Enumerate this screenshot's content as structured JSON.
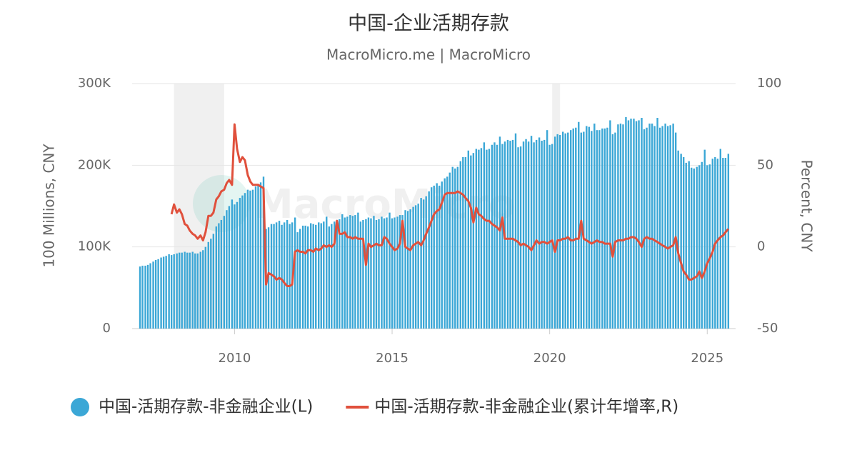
{
  "chart_data": {
    "type": "bar",
    "title": "中国-企业活期存款",
    "subtitle": "MacroMicro.me | MacroMicro",
    "watermark": "MacroMicro",
    "y_label": "100 Millions, CNY",
    "y2_label": "Percent, CNY",
    "xlim": [
      2006.75,
      2025.9
    ],
    "xticks": [
      2010,
      2015,
      2020,
      2025
    ],
    "ylim": [
      0,
      300000
    ],
    "yticks": [
      0,
      {
        "value": 100000,
        "label": "100K"
      },
      {
        "value": 200000,
        "label": "200K"
      },
      {
        "value": 300000,
        "label": "300K"
      }
    ],
    "y2lim": [
      -50,
      100
    ],
    "y2ticks": [
      -50,
      0,
      50,
      100
    ],
    "grid": true,
    "legend": "bottom",
    "shaded": [
      [
        2008.08,
        2009.67
      ],
      [
        2020.08,
        2020.33
      ]
    ],
    "x": [
      2007.0,
      2007.08,
      2007.17,
      2007.25,
      2007.33,
      2007.42,
      2007.5,
      2007.58,
      2007.67,
      2007.75,
      2007.83,
      2007.92,
      2008.0,
      2008.08,
      2008.17,
      2008.25,
      2008.33,
      2008.42,
      2008.5,
      2008.58,
      2008.67,
      2008.75,
      2008.83,
      2008.92,
      2009.0,
      2009.08,
      2009.17,
      2009.25,
      2009.33,
      2009.42,
      2009.5,
      2009.58,
      2009.67,
      2009.75,
      2009.83,
      2009.92,
      2010.0,
      2010.08,
      2010.17,
      2010.25,
      2010.33,
      2010.42,
      2010.5,
      2010.58,
      2010.67,
      2010.75,
      2010.83,
      2010.92,
      2011.0,
      2011.08,
      2011.17,
      2011.25,
      2011.33,
      2011.42,
      2011.5,
      2011.58,
      2011.67,
      2011.75,
      2011.83,
      2011.92,
      2012.0,
      2012.08,
      2012.17,
      2012.25,
      2012.33,
      2012.42,
      2012.5,
      2012.58,
      2012.67,
      2012.75,
      2012.83,
      2012.92,
      2013.0,
      2013.08,
      2013.17,
      2013.25,
      2013.33,
      2013.42,
      2013.5,
      2013.58,
      2013.67,
      2013.75,
      2013.83,
      2013.92,
      2014.0,
      2014.08,
      2014.17,
      2014.25,
      2014.33,
      2014.42,
      2014.5,
      2014.58,
      2014.67,
      2014.75,
      2014.83,
      2014.92,
      2015.0,
      2015.08,
      2015.17,
      2015.25,
      2015.33,
      2015.42,
      2015.5,
      2015.58,
      2015.67,
      2015.75,
      2015.83,
      2015.92,
      2016.0,
      2016.08,
      2016.17,
      2016.25,
      2016.33,
      2016.42,
      2016.5,
      2016.58,
      2016.67,
      2016.75,
      2016.83,
      2016.92,
      2017.0,
      2017.08,
      2017.17,
      2017.25,
      2017.33,
      2017.42,
      2017.5,
      2017.58,
      2017.67,
      2017.75,
      2017.83,
      2017.92,
      2018.0,
      2018.08,
      2018.17,
      2018.25,
      2018.33,
      2018.42,
      2018.5,
      2018.58,
      2018.67,
      2018.75,
      2018.83,
      2018.92,
      2019.0,
      2019.08,
      2019.17,
      2019.25,
      2019.33,
      2019.42,
      2019.5,
      2019.58,
      2019.67,
      2019.75,
      2019.83,
      2019.92,
      2020.0,
      2020.08,
      2020.17,
      2020.25,
      2020.33,
      2020.42,
      2020.5,
      2020.58,
      2020.67,
      2020.75,
      2020.83,
      2020.92,
      2021.0,
      2021.08,
      2021.17,
      2021.25,
      2021.33,
      2021.42,
      2021.5,
      2021.58,
      2021.67,
      2021.75,
      2021.83,
      2021.92,
      2022.0,
      2022.08,
      2022.17,
      2022.25,
      2022.33,
      2022.42,
      2022.5,
      2022.58,
      2022.67,
      2022.75,
      2022.83,
      2022.92,
      2023.0,
      2023.08,
      2023.17,
      2023.25,
      2023.33,
      2023.42,
      2023.5,
      2023.58,
      2023.67,
      2023.75,
      2023.83,
      2023.92,
      2024.0,
      2024.08,
      2024.17,
      2024.25,
      2024.33,
      2024.42,
      2024.5,
      2024.58,
      2024.67,
      2024.75,
      2024.83,
      2024.92,
      2025.0,
      2025.08,
      2025.17,
      2025.25,
      2025.33,
      2025.42,
      2025.5,
      2025.58,
      2025.67
    ],
    "series": [
      {
        "name": "中国-活期存款-非金融企业(L)",
        "type": "bar",
        "axis": "y",
        "color": "#3ba7d6",
        "values": [
          76000,
          77000,
          77000,
          78000,
          80000,
          82000,
          84000,
          85000,
          87000,
          88000,
          89000,
          91000,
          90000,
          91000,
          92000,
          93000,
          93000,
          94000,
          93000,
          93000,
          94000,
          92000,
          92000,
          94000,
          96000,
          100000,
          106000,
          110000,
          116000,
          125000,
          129000,
          133000,
          138000,
          145000,
          150000,
          158000,
          152000,
          155000,
          160000,
          163000,
          166000,
          170000,
          169000,
          170000,
          174000,
          176000,
          179000,
          186000,
          122000,
          124000,
          128000,
          128000,
          130000,
          132000,
          127000,
          130000,
          133000,
          128000,
          130000,
          136000,
          118000,
          122000,
          126000,
          126000,
          125000,
          129000,
          128000,
          127000,
          130000,
          129000,
          131000,
          137000,
          125000,
          128000,
          131000,
          133000,
          134000,
          140000,
          136000,
          137000,
          139000,
          138000,
          139000,
          142000,
          131000,
          133000,
          134000,
          136000,
          135000,
          138000,
          133000,
          134000,
          137000,
          135000,
          136000,
          142000,
          135000,
          136000,
          137000,
          139000,
          139000,
          145000,
          144000,
          146000,
          149000,
          151000,
          153000,
          160000,
          158000,
          162000,
          168000,
          173000,
          175000,
          178000,
          175000,
          180000,
          184000,
          186000,
          191000,
          198000,
          196000,
          198000,
          205000,
          210000,
          210000,
          218000,
          212000,
          215000,
          220000,
          219000,
          221000,
          228000,
          219000,
          220000,
          225000,
          228000,
          225000,
          235000,
          226000,
          229000,
          231000,
          230000,
          231000,
          239000,
          222000,
          223000,
          229000,
          232000,
          229000,
          236000,
          228000,
          231000,
          234000,
          230000,
          231000,
          243000,
          225000,
          226000,
          235000,
          238000,
          237000,
          241000,
          239000,
          240000,
          243000,
          245000,
          246000,
          253000,
          240000,
          241000,
          248000,
          247000,
          242000,
          251000,
          243000,
          243000,
          245000,
          245000,
          246000,
          255000,
          238000,
          240000,
          250000,
          251000,
          250000,
          259000,
          255000,
          257000,
          257000,
          254000,
          255000,
          258000,
          244000,
          246000,
          251000,
          251000,
          248000,
          258000,
          246000,
          248000,
          251000,
          248000,
          249000,
          251000,
          240000,
          218000,
          214000,
          210000,
          203000,
          205000,
          197000,
          196000,
          198000,
          200000,
          204000,
          219000,
          200000,
          201000,
          208000,
          210000,
          208000,
          220000,
          209000,
          209000,
          214000
        ]
      },
      {
        "name": "中国-活期存款-非金融企业(累计年增率,R)",
        "type": "line",
        "axis": "y2",
        "color": "#e0503c",
        "values": [
          null,
          null,
          null,
          null,
          null,
          null,
          null,
          null,
          null,
          null,
          null,
          null,
          20,
          26,
          21,
          23,
          20,
          14,
          13,
          10,
          8,
          7,
          5,
          7,
          4,
          9,
          19,
          19,
          21,
          29,
          31,
          34,
          35,
          39,
          41,
          38,
          75,
          60,
          52,
          55,
          53,
          44,
          40,
          38,
          38,
          38,
          37,
          36,
          -23,
          -16,
          -17,
          -18,
          -20,
          -19,
          -20,
          -22,
          -24,
          -24,
          -23,
          -3,
          -2,
          -3,
          -3,
          -4,
          -2,
          -2,
          -3,
          -1,
          -2,
          -1,
          1,
          0,
          1,
          0,
          2,
          16,
          8,
          8,
          9,
          6,
          6,
          5,
          6,
          5,
          5,
          5,
          -11,
          2,
          0,
          1,
          2,
          1,
          1,
          6,
          5,
          2,
          0,
          -2,
          -1,
          2,
          16,
          0,
          -1,
          -2,
          1,
          2,
          3,
          1,
          4,
          8,
          12,
          16,
          20,
          22,
          23,
          27,
          32,
          33,
          33,
          33,
          33,
          34,
          33,
          32,
          30,
          28,
          24,
          15,
          24,
          20,
          19,
          17,
          16,
          16,
          14,
          13,
          12,
          10,
          18,
          5,
          5,
          5,
          5,
          4,
          3,
          1,
          2,
          1,
          0,
          -2,
          1,
          4,
          2,
          3,
          3,
          2,
          3,
          4,
          -3,
          4,
          4,
          5,
          5,
          6,
          4,
          4,
          5,
          5,
          16,
          5,
          4,
          3,
          2,
          3,
          4,
          3,
          3,
          2,
          2,
          2,
          -6,
          3,
          4,
          4,
          4,
          5,
          5,
          6,
          6,
          5,
          3,
          0,
          5,
          6,
          5,
          5,
          4,
          3,
          2,
          1,
          0,
          -1,
          0,
          1,
          6,
          -4,
          -10,
          -15,
          -17,
          -20,
          -20,
          -19,
          -18,
          -15,
          -19,
          -15,
          -10,
          -7,
          -3,
          2,
          4,
          6,
          7,
          9,
          11
        ]
      }
    ]
  }
}
